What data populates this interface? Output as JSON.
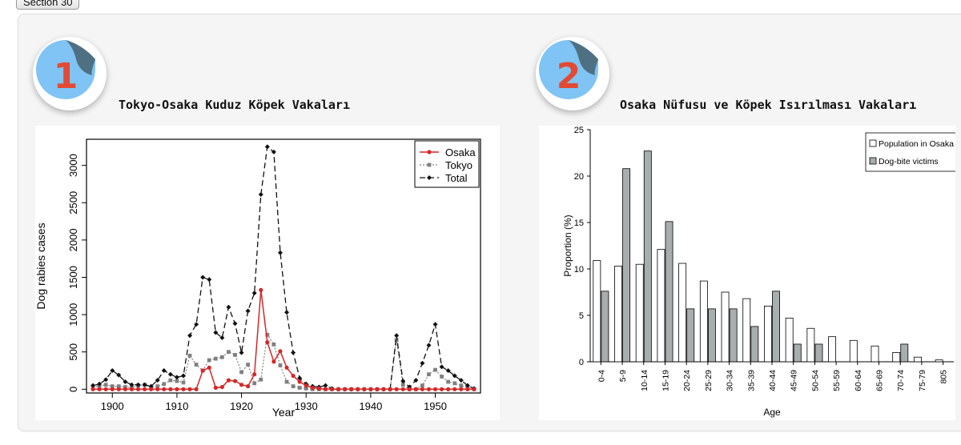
{
  "section_label": "Section 30",
  "cards": [
    {
      "number": "1",
      "title": "Tokyo-Osaka Kuduz Köpek Vakaları"
    },
    {
      "number": "2",
      "title": "Osaka Nüfusu ve Köpek Isırılması Vakaları"
    }
  ],
  "colors": {
    "osaka": "#d62728",
    "tokyo": "#808080",
    "total": "#111111",
    "badge_circle": "#7fc4f4",
    "badge_fold": "#4f7083",
    "badge_number": "#e24a33"
  },
  "chart_data": [
    {
      "type": "line",
      "title": "",
      "xlabel": "Year",
      "ylabel": "Dog rabies cases",
      "xlim": [
        1896,
        1957
      ],
      "ylim": [
        -50,
        3350
      ],
      "xticks": [
        1900,
        1910,
        1920,
        1930,
        1940,
        1950
      ],
      "yticks": [
        0,
        500,
        1000,
        1500,
        2000,
        2500,
        3000
      ],
      "legend_position": "top-right",
      "x": [
        1897,
        1898,
        1899,
        1900,
        1901,
        1902,
        1903,
        1904,
        1905,
        1906,
        1907,
        1908,
        1909,
        1910,
        1911,
        1912,
        1913,
        1914,
        1915,
        1916,
        1917,
        1918,
        1919,
        1920,
        1921,
        1922,
        1923,
        1924,
        1925,
        1926,
        1927,
        1928,
        1929,
        1930,
        1931,
        1932,
        1933,
        1934,
        1935,
        1936,
        1937,
        1938,
        1939,
        1940,
        1941,
        1942,
        1943,
        1944,
        1945,
        1946,
        1947,
        1948,
        1949,
        1950,
        1951,
        1952,
        1953,
        1954,
        1955,
        1956
      ],
      "series": [
        {
          "name": "Osaka",
          "style": "solid",
          "marker": "circle",
          "values": [
            0,
            0,
            0,
            0,
            0,
            0,
            0,
            0,
            0,
            0,
            0,
            0,
            0,
            0,
            0,
            0,
            0,
            250,
            290,
            20,
            30,
            120,
            110,
            60,
            40,
            200,
            1330,
            630,
            370,
            510,
            290,
            180,
            100,
            50,
            20,
            10,
            0,
            0,
            0,
            0,
            0,
            0,
            0,
            0,
            0,
            0,
            0,
            0,
            0,
            0,
            0,
            0,
            0,
            0,
            0,
            0,
            0,
            0,
            0,
            0
          ]
        },
        {
          "name": "Tokyo",
          "style": "dotted",
          "marker": "square",
          "values": [
            30,
            40,
            60,
            40,
            40,
            30,
            20,
            50,
            60,
            20,
            40,
            70,
            120,
            110,
            90,
            450,
            330,
            250,
            390,
            410,
            430,
            500,
            460,
            230,
            330,
            80,
            130,
            730,
            600,
            320,
            100,
            40,
            20,
            10,
            0,
            0,
            0,
            0,
            0,
            0,
            0,
            0,
            0,
            0,
            0,
            0,
            0,
            660,
            60,
            0,
            0,
            50,
            200,
            260,
            170,
            100,
            80,
            50,
            20,
            0
          ]
        },
        {
          "name": "Total",
          "style": "dashed",
          "marker": "diamond",
          "values": [
            50,
            70,
            130,
            250,
            190,
            100,
            60,
            60,
            60,
            40,
            120,
            250,
            200,
            160,
            180,
            720,
            870,
            1500,
            1470,
            760,
            690,
            1100,
            880,
            490,
            1050,
            1290,
            2610,
            3250,
            3180,
            1830,
            1030,
            490,
            150,
            70,
            40,
            30,
            50,
            10,
            0,
            0,
            0,
            0,
            0,
            0,
            0,
            0,
            0,
            720,
            110,
            30,
            120,
            350,
            590,
            870,
            300,
            250,
            180,
            120,
            50,
            10
          ]
        }
      ]
    },
    {
      "type": "bar",
      "title": "",
      "xlabel": "Age",
      "ylabel": "Proportion (%)",
      "ylim": [
        0,
        25
      ],
      "yticks": [
        0,
        5,
        10,
        15,
        20,
        25
      ],
      "legend_position": "top-right",
      "categories": [
        "0-4",
        "5-9",
        "10-14",
        "15-19",
        "20-24",
        "25-29",
        "30-34",
        "35-39",
        "40-44",
        "45-49",
        "50-54",
        "55-59",
        "60-64",
        "65-69",
        "70-74",
        "75-79",
        "805"
      ],
      "series": [
        {
          "name": "Population in Osaka",
          "color": "#ffffff",
          "values": [
            10.9,
            10.3,
            10.5,
            12.1,
            10.6,
            8.7,
            7.5,
            6.8,
            6.0,
            4.7,
            3.6,
            2.7,
            2.3,
            1.7,
            1.0,
            0.5,
            0.2
          ]
        },
        {
          "name": "Dog-bite victims",
          "color": "#a8aeae",
          "values": [
            7.6,
            20.8,
            22.7,
            15.1,
            5.7,
            5.7,
            5.7,
            3.8,
            7.6,
            1.9,
            1.9,
            0,
            0,
            0,
            1.9,
            0,
            0
          ]
        }
      ]
    }
  ]
}
